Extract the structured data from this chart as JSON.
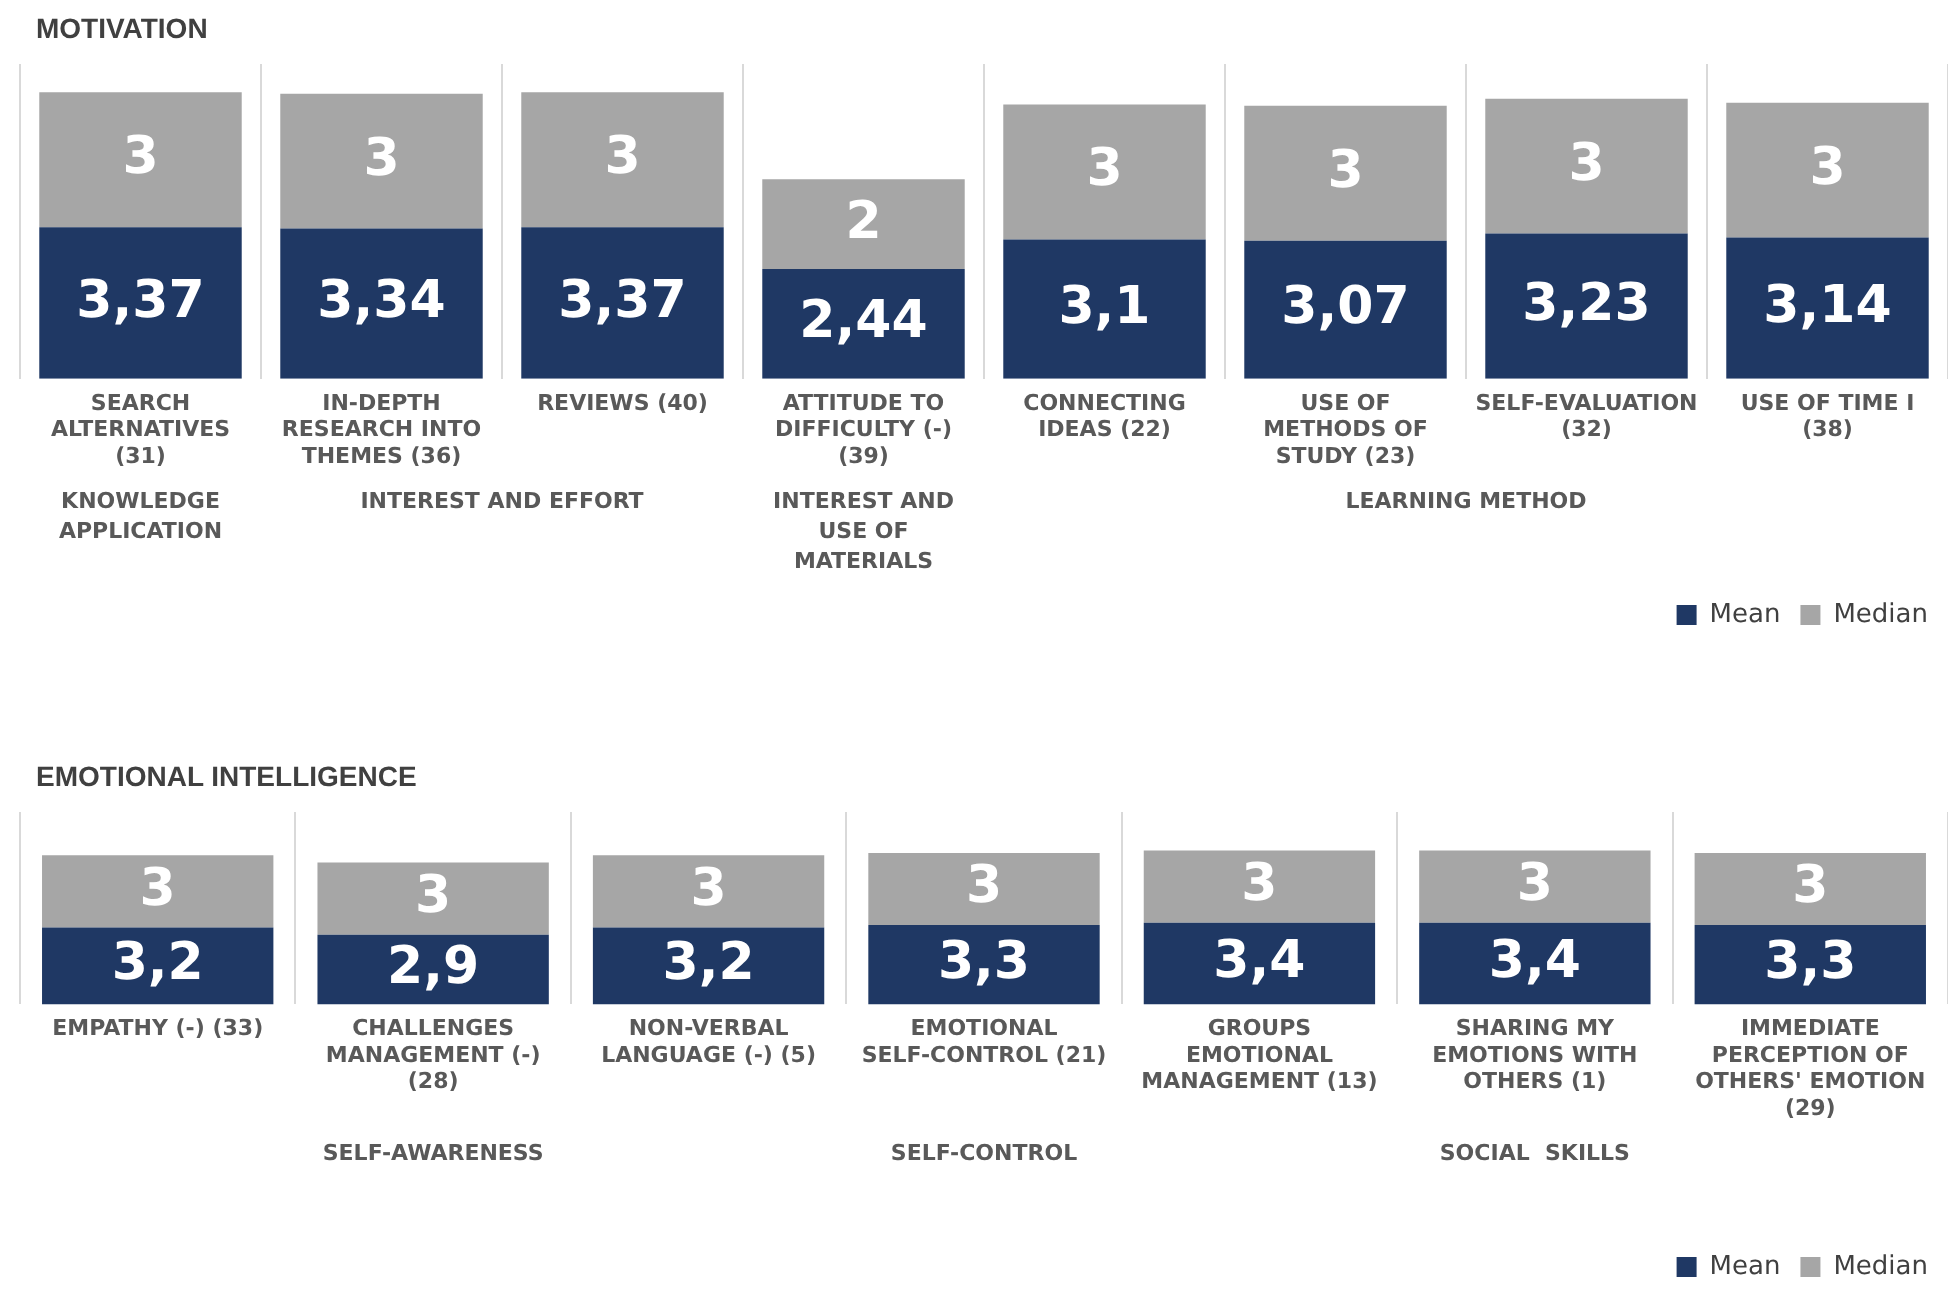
{
  "chart_data": [
    {
      "type": "bar",
      "title": "MOTIVATION",
      "stacked": true,
      "grid": "x",
      "tick_labels": "x",
      "legend": "bottom right",
      "categories": [
        "SEARCH ALTERNATIVES (31)",
        "IN-DEPTH RESEARCH INTO THEMES (36)",
        "REVIEWS (40)",
        "ATTITUDE TO DIFFICULTY (-) (39)",
        "CONNECTING IDEAS (22)",
        "USE OF METHODS OF STUDY (23)",
        "SELF-EVALUATION (32)",
        "USE OF TIME I (38)"
      ],
      "series": [
        {
          "name": "Mean",
          "color": "#1f3864",
          "values": [
            3.37,
            3.34,
            3.37,
            2.44,
            3.1,
            3.07,
            3.23,
            3.14
          ],
          "value_labels": [
            "3,37",
            "3,34",
            "3,37",
            "2,44",
            "3,1",
            "3,07",
            "3,23",
            "3,14"
          ]
        },
        {
          "name": "Median",
          "color": "#a6a6a6",
          "values": [
            3,
            3,
            3,
            2,
            3,
            3,
            3,
            3
          ],
          "value_labels": [
            "3",
            "3",
            "3",
            "2",
            "3",
            "3",
            "3",
            "3"
          ]
        }
      ],
      "annotations": [
        "KNOWLEDGE APPLICATION",
        "INTEREST AND EFFORT",
        "INTEREST AND USE OF MATERIALS",
        "LEARNING METHOD"
      ]
    },
    {
      "type": "bar",
      "title": "EMOTIONAL INTELLIGENCE",
      "stacked": true,
      "grid": "x",
      "tick_labels": "x",
      "legend": "bottom right",
      "categories": [
        "EMPATHY (-) (33)",
        "CHALLENGES MANAGEMENT (-) (28)",
        "NON-VERBAL LANGUAGE (-) (5)",
        "EMOTIONAL SELF-CONTROL (21)",
        "GROUPS EMOTIONAL MANAGEMENT (13)",
        "SHARING MY EMOTIONS WITH OTHERS (1)",
        "IMMEDIATE PERCEPTION OF OTHERS' EMOTION (29)"
      ],
      "series": [
        {
          "name": "Mean",
          "color": "#1f3864",
          "values": [
            3.2,
            2.9,
            3.2,
            3.3,
            3.4,
            3.4,
            3.3
          ],
          "value_labels": [
            "3,2",
            "2,9",
            "3,2",
            "3,3",
            "3,4",
            "3,4",
            "3,3"
          ]
        },
        {
          "name": "Median",
          "color": "#a6a6a6",
          "values": [
            3,
            3,
            3,
            3,
            3,
            3,
            3
          ],
          "value_labels": [
            "3",
            "3",
            "3",
            "3",
            "3",
            "3",
            "3"
          ]
        }
      ],
      "annotations": [
        "SELF-AWARENESS",
        "SELF-CONTROL",
        "SOCIAL  SKILLS"
      ]
    }
  ]
}
